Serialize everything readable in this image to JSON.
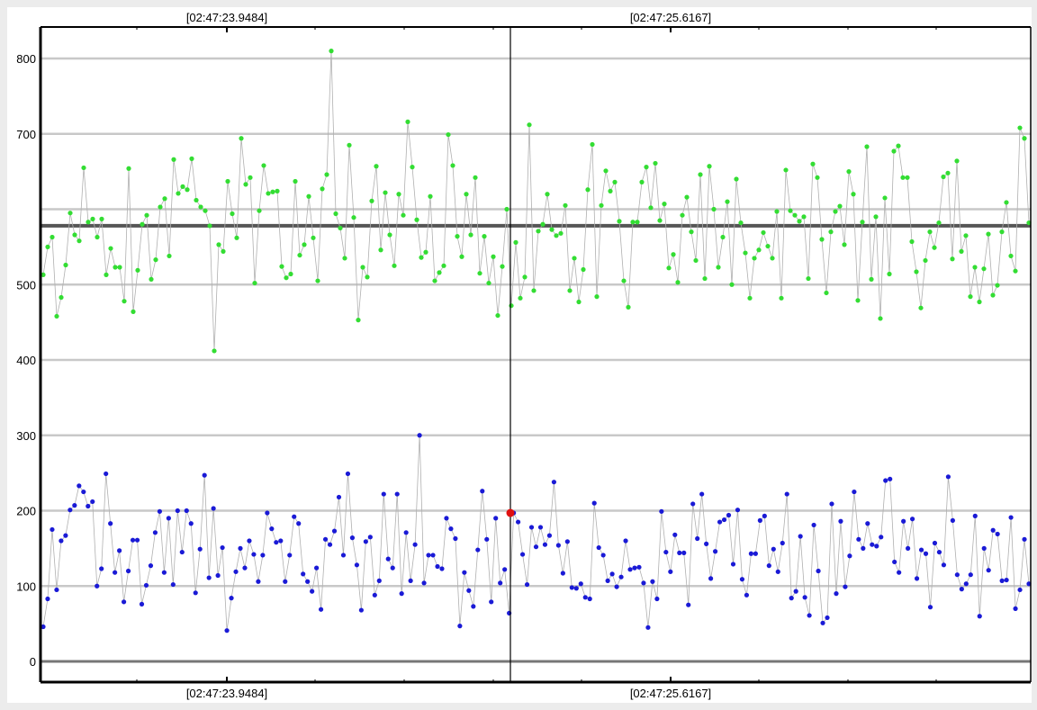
{
  "chart_data": {
    "type": "line",
    "title": "",
    "xlabel": "",
    "ylabel": "",
    "ylim": [
      0,
      800
    ],
    "y_ticks_labeled": [
      0,
      100,
      200,
      300,
      400,
      500,
      700,
      800
    ],
    "y_gridlines": [
      0,
      100,
      200,
      300,
      400,
      500,
      600,
      700,
      800
    ],
    "grid": true,
    "time_labels_top": [
      "[02:47:23.9484]",
      "[02:47:25.6167]"
    ],
    "time_labels_bottom": [
      "[02:47:23.9484]",
      "[02:47:25.6167]"
    ],
    "mean_line": {
      "value": 578,
      "color": "#555555"
    },
    "cursor": {
      "time": "[02:47:25.6167]",
      "marker_value": 197,
      "marker_color": "#e01010"
    },
    "series": [
      {
        "color": "#33dd33",
        "values": [
          513,
          550,
          563,
          458,
          483,
          526,
          595,
          566,
          558,
          655,
          583,
          587,
          563,
          587,
          513,
          548,
          523,
          523,
          478,
          654,
          464,
          519,
          580,
          592,
          507,
          533,
          603,
          614,
          538,
          666,
          621,
          630,
          626,
          667,
          612,
          603,
          598,
          578,
          412,
          553,
          544,
          637,
          594,
          562,
          694,
          633,
          642,
          502,
          598,
          658,
          621,
          623,
          624,
          524,
          509,
          514,
          637,
          539,
          553,
          617,
          562,
          505,
          627,
          646,
          810,
          594,
          575,
          535,
          685,
          589,
          453,
          523,
          510,
          611,
          657,
          546,
          622,
          566,
          525,
          620,
          592,
          716,
          656,
          586,
          536,
          543,
          617,
          505,
          516,
          525,
          699,
          658,
          564,
          537,
          620,
          566,
          642,
          515,
          564,
          502,
          537,
          459,
          524,
          600,
          472,
          556,
          482,
          510,
          712,
          492,
          571,
          580,
          620,
          573,
          565,
          568,
          605,
          492,
          535,
          477,
          520,
          626,
          686,
          484,
          605,
          651,
          624,
          636,
          584,
          505,
          470,
          583,
          583,
          636,
          656,
          602,
          661,
          585,
          607,
          522,
          540,
          503,
          592,
          616,
          570,
          532,
          646,
          508,
          657,
          600,
          523,
          563,
          610,
          500,
          640,
          582,
          542,
          482,
          535,
          546,
          569,
          551,
          535,
          597,
          482,
          652,
          598,
          592,
          584,
          590,
          508,
          660,
          642,
          560,
          489,
          570,
          597,
          604,
          553,
          650,
          620,
          479,
          583,
          683,
          507,
          590,
          455,
          615,
          514,
          677,
          684,
          642,
          642,
          557,
          517,
          469,
          532,
          570,
          549,
          582,
          643,
          648,
          534,
          664,
          544,
          565,
          484,
          523,
          477,
          521,
          567,
          486,
          499,
          570,
          609,
          538,
          518,
          708,
          694,
          582
        ]
      },
      {
        "color": "#1a1ad6",
        "values": [
          46,
          83,
          175,
          95,
          160,
          167,
          201,
          207,
          233,
          225,
          206,
          212,
          100,
          123,
          249,
          183,
          118,
          147,
          79,
          120,
          161,
          161,
          76,
          101,
          127,
          171,
          199,
          118,
          190,
          102,
          200,
          145,
          200,
          183,
          91,
          149,
          247,
          111,
          203,
          114,
          151,
          41,
          84,
          119,
          150,
          124,
          160,
          142,
          106,
          141,
          197,
          176,
          158,
          160,
          106,
          141,
          192,
          183,
          116,
          106,
          93,
          124,
          69,
          162,
          155,
          173,
          218,
          141,
          249,
          164,
          128,
          68,
          159,
          165,
          88,
          107,
          222,
          136,
          124,
          222,
          90,
          171,
          107,
          155,
          300,
          104,
          141,
          141,
          126,
          123,
          190,
          176,
          163,
          47,
          118,
          94,
          73,
          148,
          226,
          162,
          79,
          190,
          104,
          122,
          64,
          197,
          185,
          142,
          102,
          178,
          152,
          178,
          155,
          167,
          238,
          154,
          117,
          159,
          98,
          97,
          103,
          85,
          83,
          210,
          151,
          141,
          107,
          116,
          99,
          112,
          160,
          122,
          124,
          125,
          104,
          45,
          106,
          83,
          199,
          145,
          119,
          168,
          144,
          144,
          75,
          209,
          163,
          222,
          156,
          110,
          146,
          185,
          188,
          194,
          129,
          201,
          109,
          88,
          143,
          143,
          187,
          193,
          127,
          149,
          119,
          157,
          222,
          84,
          93,
          166,
          85,
          61,
          181,
          120,
          51,
          58,
          209,
          90,
          186,
          99,
          140,
          225,
          162,
          150,
          183,
          155,
          153,
          165,
          240,
          242,
          132,
          118,
          186,
          150,
          189,
          110,
          148,
          143,
          72,
          157,
          145,
          128,
          245,
          187,
          115,
          96,
          103,
          115,
          193,
          60,
          150,
          121,
          174,
          169,
          107,
          108,
          191,
          70,
          95,
          162,
          103
        ]
      }
    ]
  }
}
